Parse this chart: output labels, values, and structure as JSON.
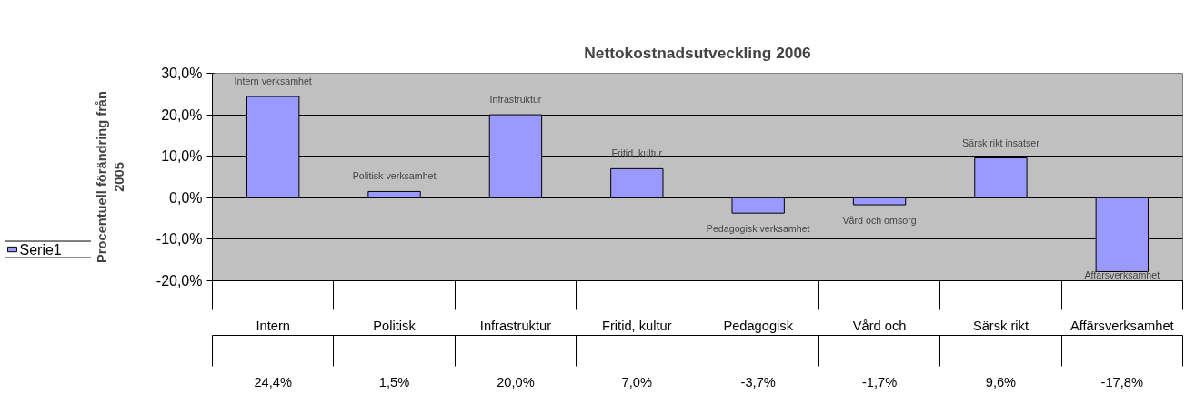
{
  "chart_data": {
    "type": "bar",
    "title": "Nettokostnadsutveckling 2006",
    "ylabel": "Procentuell förändring från 2005",
    "categories": [
      "Intern",
      "Politisk",
      "Infrastruktur",
      "Fritid, kultur",
      "Pedagogisk",
      "Vård och",
      "Särsk rikt",
      "Affärsverksamhet"
    ],
    "series": [
      {
        "name": "Serie1",
        "color": "#9999ff",
        "values": [
          24.4,
          1.5,
          20.0,
          7.0,
          -3.7,
          -1.7,
          9.6,
          -17.8
        ],
        "value_labels": [
          "24,4%",
          "1,5%",
          "20,0%",
          "7,0%",
          "-3,7%",
          "-1,7%",
          "9,6%",
          "-17,8%"
        ]
      }
    ],
    "ylim": [
      -20,
      30
    ],
    "yticks": [
      {
        "value": -20,
        "label": "-20,0%"
      },
      {
        "value": -10,
        "label": "-10,0%"
      },
      {
        "value": 0,
        "label": "0,0%"
      },
      {
        "value": 10,
        "label": "10,0%"
      },
      {
        "value": 20,
        "label": "20,0%"
      },
      {
        "value": 30,
        "label": "30,0%"
      }
    ],
    "grid": "y",
    "annotations": [
      "Intern verksamhet",
      "Politisk verksamhet",
      "Infrastruktur",
      "Fritid, kultur",
      "Pedagogisk verksamhet",
      "Vård och omsorg",
      "Särsk rikt insatser",
      "Affärsverksamhet"
    ]
  }
}
